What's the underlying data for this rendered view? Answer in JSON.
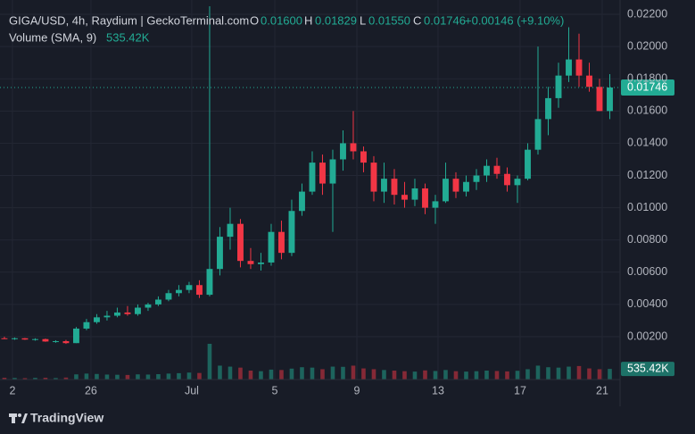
{
  "chart_data": {
    "type": "candlestick",
    "header": {
      "symbol": "GIGA/USD, 4h, Raydium | GeckoTerminal.com",
      "open_label": "O",
      "open": "0.01600",
      "high_label": "H",
      "high": "0.01829",
      "low_label": "L",
      "low": "0.01550",
      "close_label": "C",
      "close": "0.01746",
      "change": "+0.00146 (+9.10%)",
      "volume_name": "Volume (SMA, 9)"
    },
    "categories": [
      null,
      null,
      null,
      null,
      null,
      null,
      null,
      null,
      null,
      null,
      null,
      null,
      null,
      null,
      null,
      null,
      null,
      null,
      null,
      null,
      null,
      null,
      null,
      null,
      null,
      null,
      null,
      null,
      null,
      null,
      null,
      null,
      null,
      null,
      null,
      null,
      null,
      null,
      null,
      null,
      null,
      null,
      null,
      null,
      null,
      null,
      null,
      null,
      null,
      null,
      null,
      null,
      null,
      null,
      null,
      null,
      null,
      null,
      null,
      null
    ],
    "open": [
      0.0019,
      0.00188,
      0.0019,
      0.00182,
      0.00185,
      0.0017,
      0.00172,
      0.0016,
      0.0025,
      0.0029,
      0.0032,
      0.0033,
      0.0035,
      0.0034,
      0.0038,
      0.004,
      0.0043,
      0.0047,
      0.0049,
      0.0052,
      0.0046,
      0.0062,
      0.0082,
      0.009,
      0.0067,
      0.0065,
      0.0066,
      0.0085,
      0.0072,
      0.0098,
      0.011,
      0.0128,
      0.0115,
      0.013,
      0.014,
      0.0135,
      0.0128,
      0.011,
      0.0118,
      0.0108,
      0.0105,
      0.0112,
      0.01,
      0.0104,
      0.0118,
      0.011,
      0.0116,
      0.012,
      0.0126,
      0.0121,
      0.0114,
      0.0118,
      0.0136,
      0.0155,
      0.0168,
      0.0182,
      0.0192,
      0.0182,
      0.0175,
      0.016
    ],
    "high": [
      0.002,
      0.00195,
      0.00192,
      0.0019,
      0.00188,
      0.00178,
      0.0018,
      0.0026,
      0.0031,
      0.0034,
      0.0036,
      0.0038,
      0.0039,
      0.004,
      0.0041,
      0.0045,
      0.0049,
      0.0052,
      0.0054,
      0.0055,
      0.0225,
      0.0088,
      0.01,
      0.0093,
      0.0075,
      0.0072,
      0.009,
      0.0092,
      0.0105,
      0.0115,
      0.0135,
      0.0133,
      0.0136,
      0.0148,
      0.016,
      0.0138,
      0.0132,
      0.0128,
      0.0124,
      0.0116,
      0.0118,
      0.0115,
      0.0108,
      0.0128,
      0.0122,
      0.012,
      0.0124,
      0.013,
      0.0131,
      0.0125,
      0.012,
      0.014,
      0.02,
      0.0175,
      0.019,
      0.0212,
      0.0208,
      0.019,
      0.018,
      0.01829
    ],
    "low": [
      0.00185,
      0.0018,
      0.0018,
      0.00175,
      0.00168,
      0.00162,
      0.00155,
      0.0016,
      0.0024,
      0.0028,
      0.003,
      0.0032,
      0.0033,
      0.0033,
      0.0036,
      0.0039,
      0.0042,
      0.0045,
      0.0047,
      0.0044,
      0.0045,
      0.0058,
      0.0074,
      0.0063,
      0.0062,
      0.0061,
      0.0064,
      0.0068,
      0.007,
      0.0095,
      0.0108,
      0.0108,
      0.0085,
      0.0123,
      0.013,
      0.0122,
      0.0104,
      0.0103,
      0.0102,
      0.01,
      0.0101,
      0.0096,
      0.009,
      0.0103,
      0.0106,
      0.0107,
      0.0111,
      0.0116,
      0.0118,
      0.011,
      0.0103,
      0.0117,
      0.0133,
      0.0145,
      0.0162,
      0.0178,
      0.0175,
      0.0172,
      0.016,
      0.0155
    ],
    "close": [
      0.00188,
      0.0019,
      0.00182,
      0.00185,
      0.0017,
      0.00172,
      0.0016,
      0.0025,
      0.0029,
      0.0032,
      0.0033,
      0.0035,
      0.0034,
      0.0038,
      0.004,
      0.0043,
      0.0047,
      0.0049,
      0.0052,
      0.0046,
      0.0062,
      0.0082,
      0.009,
      0.0067,
      0.0065,
      0.0066,
      0.0085,
      0.0072,
      0.0098,
      0.011,
      0.0128,
      0.0115,
      0.013,
      0.014,
      0.0135,
      0.0128,
      0.011,
      0.0118,
      0.0108,
      0.0105,
      0.0112,
      0.01,
      0.0104,
      0.0118,
      0.011,
      0.0116,
      0.012,
      0.0126,
      0.0121,
      0.0114,
      0.0118,
      0.0136,
      0.0155,
      0.0168,
      0.0182,
      0.0192,
      0.0182,
      0.0175,
      0.016,
      0.01746
    ],
    "volume": [
      90000,
      80000,
      70000,
      85000,
      90000,
      75000,
      100000,
      260000,
      300000,
      280000,
      250000,
      240000,
      230000,
      260000,
      250000,
      270000,
      300000,
      320000,
      350000,
      330000,
      1800000,
      700000,
      650000,
      600000,
      450000,
      420000,
      500000,
      480000,
      550000,
      620000,
      600000,
      520000,
      650000,
      640000,
      700000,
      560000,
      520000,
      480000,
      450000,
      420000,
      400000,
      460000,
      430000,
      480000,
      420000,
      400000,
      420000,
      450000,
      430000,
      410000,
      440000,
      520000,
      700000,
      620000,
      600000,
      650000,
      680000,
      560000,
      520000,
      535000
    ],
    "up_color": "#22ab94",
    "down_color": "#f23645",
    "ylim": [
      -0.00066,
      0.02289
    ],
    "yticks": [
      {
        "value": 0.002,
        "label": "0.00200"
      },
      {
        "value": 0.004,
        "label": "0.00400"
      },
      {
        "value": 0.006,
        "label": "0.00600"
      },
      {
        "value": 0.008,
        "label": "0.00800"
      },
      {
        "value": 0.01,
        "label": "0.01000"
      },
      {
        "value": 0.012,
        "label": "0.01200"
      },
      {
        "value": 0.014,
        "label": "0.01400"
      },
      {
        "value": 0.016,
        "label": "0.01600"
      },
      {
        "value": 0.018,
        "label": "0.01800"
      },
      {
        "value": 0.02,
        "label": "0.02000"
      },
      {
        "value": 0.022,
        "label": "0.02200"
      }
    ],
    "xlim": [
      -0.43,
      60
    ],
    "xticks": [
      {
        "value": 0.78,
        "label": "2"
      },
      {
        "value": 8.43,
        "label": "26"
      },
      {
        "value": 18.26,
        "label": "Jul"
      },
      {
        "value": 26.35,
        "label": "5"
      },
      {
        "value": 34.35,
        "label": "9"
      },
      {
        "value": 42.26,
        "label": "13"
      },
      {
        "value": 50.26,
        "label": "17"
      },
      {
        "value": 58.26,
        "label": "21"
      }
    ],
    "y2lim": [
      0,
      4500000
    ],
    "last_price": {
      "value": 0.01746,
      "label": "0.01746"
    },
    "volume_sma": {
      "value": 535420,
      "label": "535.42K"
    },
    "grid": true,
    "brand": "TradingView"
  }
}
